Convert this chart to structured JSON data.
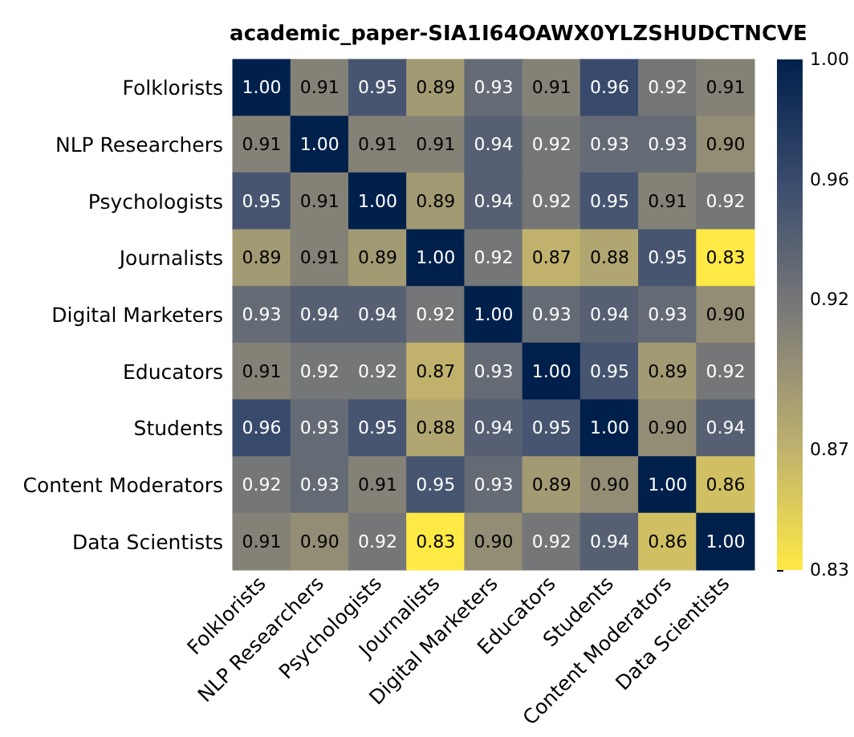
{
  "chart_data": {
    "type": "heatmap",
    "title": "academic_paper-SIA1I64OAWX0YLZSHUDCTNCVE",
    "categories": [
      "Folklorists",
      "NLP Researchers",
      "Psychologists",
      "Journalists",
      "Digital Marketers",
      "Educators",
      "Students",
      "Content Moderators",
      "Data Scientists"
    ],
    "y_categories": [
      "Folklorists",
      "NLP Researchers",
      "Psychologists",
      "Journalists",
      "Digital Marketers",
      "Educators",
      "Students",
      "Content Moderators",
      "Data Scientists"
    ],
    "cells": [
      [
        1.0,
        0.91,
        0.95,
        0.89,
        0.93,
        0.91,
        0.96,
        0.92,
        0.91
      ],
      [
        0.91,
        1.0,
        0.91,
        0.91,
        0.94,
        0.92,
        0.93,
        0.93,
        0.9
      ],
      [
        0.95,
        0.91,
        1.0,
        0.89,
        0.94,
        0.92,
        0.95,
        0.91,
        0.92
      ],
      [
        0.89,
        0.91,
        0.89,
        1.0,
        0.92,
        0.87,
        0.88,
        0.95,
        0.83
      ],
      [
        0.93,
        0.94,
        0.94,
        0.92,
        1.0,
        0.93,
        0.94,
        0.93,
        0.9
      ],
      [
        0.91,
        0.92,
        0.92,
        0.87,
        0.93,
        1.0,
        0.95,
        0.89,
        0.92
      ],
      [
        0.96,
        0.93,
        0.95,
        0.88,
        0.94,
        0.95,
        1.0,
        0.9,
        0.94
      ],
      [
        0.92,
        0.93,
        0.91,
        0.95,
        0.93,
        0.89,
        0.9,
        1.0,
        0.86
      ],
      [
        0.91,
        0.9,
        0.92,
        0.83,
        0.9,
        0.92,
        0.94,
        0.86,
        1.0
      ]
    ],
    "cell_labels": [
      [
        "1.00",
        "0.91",
        "0.95",
        "0.89",
        "0.93",
        "0.91",
        "0.96",
        "0.92",
        "0.91"
      ],
      [
        "0.91",
        "1.00",
        "0.91",
        "0.91",
        "0.94",
        "0.92",
        "0.93",
        "0.93",
        "0.90"
      ],
      [
        "0.95",
        "0.91",
        "1.00",
        "0.89",
        "0.94",
        "0.92",
        "0.95",
        "0.91",
        "0.92"
      ],
      [
        "0.89",
        "0.91",
        "0.89",
        "1.00",
        "0.92",
        "0.87",
        "0.88",
        "0.95",
        "0.83"
      ],
      [
        "0.93",
        "0.94",
        "0.94",
        "0.92",
        "1.00",
        "0.93",
        "0.94",
        "0.93",
        "0.90"
      ],
      [
        "0.91",
        "0.92",
        "0.92",
        "0.87",
        "0.93",
        "1.00",
        "0.95",
        "0.89",
        "0.92"
      ],
      [
        "0.96",
        "0.93",
        "0.95",
        "0.88",
        "0.94",
        "0.95",
        "1.00",
        "0.90",
        "0.94"
      ],
      [
        "0.92",
        "0.93",
        "0.91",
        "0.95",
        "0.93",
        "0.89",
        "0.90",
        "1.00",
        "0.86"
      ],
      [
        "0.91",
        "0.90",
        "0.92",
        "0.83",
        "0.90",
        "0.92",
        "0.94",
        "0.86",
        "1.00"
      ]
    ],
    "clim": [
      0.83,
      1.0
    ],
    "cticks": [
      0.83,
      0.87,
      0.92,
      0.96,
      {
        "value": 1,
        "label": "1.00"
      }
    ]
  }
}
